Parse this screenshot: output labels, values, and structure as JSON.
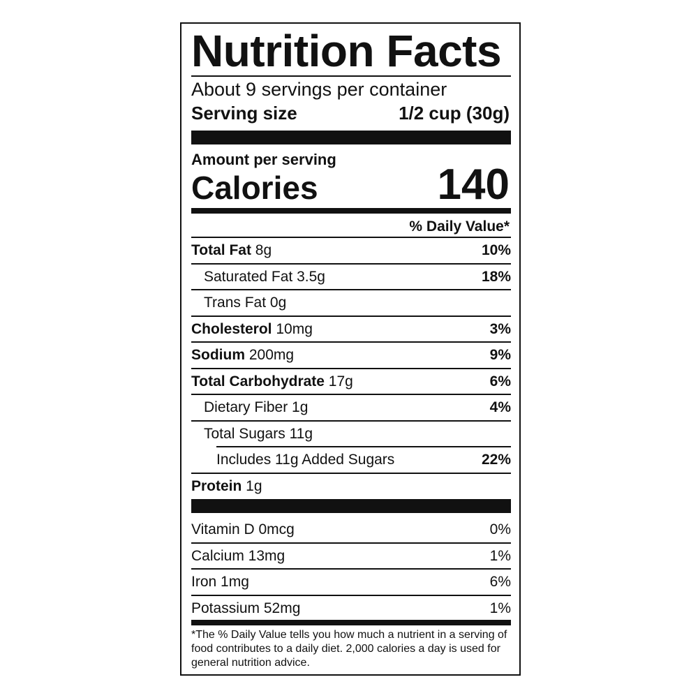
{
  "title": "Nutrition Facts",
  "servings_per_container": "About 9 servings per container",
  "serving_size": {
    "label": "Serving size",
    "value": "1/2 cup (30g)"
  },
  "amount_per_serving": "Amount per serving",
  "calories": {
    "label": "Calories",
    "value": "140"
  },
  "daily_value_header": "% Daily Value*",
  "nutrients": [
    {
      "name": "Total Fat",
      "amount": " 8g",
      "dv": "10%"
    },
    {
      "name": "",
      "amount": "Saturated Fat 3.5g",
      "dv": "18%"
    },
    {
      "name": "",
      "amount": "Trans Fat 0g",
      "dv": ""
    },
    {
      "name": "Cholesterol",
      "amount": " 10mg",
      "dv": "3%"
    },
    {
      "name": "Sodium",
      "amount": " 200mg",
      "dv": "9%"
    },
    {
      "name": "Total Carbohydrate",
      "amount": " 17g",
      "dv": "6%"
    },
    {
      "name": "",
      "amount": "Dietary Fiber 1g",
      "dv": "4%"
    },
    {
      "name": "",
      "amount": "Total Sugars 11g",
      "dv": ""
    },
    {
      "name": "",
      "amount": "Includes 11g Added Sugars",
      "dv": "22%"
    },
    {
      "name": "Protein",
      "amount": " 1g",
      "dv": ""
    }
  ],
  "vitamins": [
    {
      "name": "Vitamin D 0mcg",
      "dv": "0%"
    },
    {
      "name": "Calcium 13mg",
      "dv": "1%"
    },
    {
      "name": "Iron 1mg",
      "dv": "6%"
    },
    {
      "name": "Potassium 52mg",
      "dv": "1%"
    }
  ],
  "footnote": "*The % Daily Value tells you how much a nutrient in a serving of food contributes to a daily diet. 2,000 calories a day is used for general nutrition advice."
}
